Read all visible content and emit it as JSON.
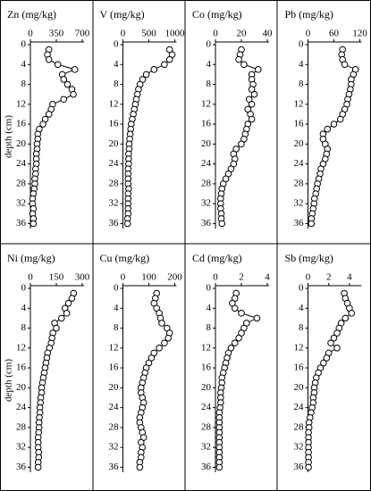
{
  "chart_data": [
    {
      "type": "line",
      "title": "Zn (mg/kg)",
      "ylabel": "depth (cm)",
      "xlim": [
        0,
        700
      ],
      "xticks": [
        0,
        350,
        700
      ],
      "ylim": [
        0,
        37
      ],
      "yticks": [
        0,
        4,
        8,
        12,
        16,
        20,
        24,
        28,
        32,
        36
      ],
      "color": "#000000",
      "x": [
        250,
        230,
        250,
        370,
        600,
        430,
        450,
        500,
        560,
        580,
        450,
        300,
        280,
        250,
        200,
        170,
        120,
        100,
        100,
        90,
        90,
        80,
        80,
        80,
        70,
        70,
        60,
        60,
        50,
        40,
        30,
        30,
        40,
        30,
        40,
        40
      ],
      "y": [
        1,
        2,
        3,
        4,
        5,
        6,
        7,
        8,
        9,
        10,
        11,
        12,
        13,
        14,
        15,
        16,
        17,
        18,
        19,
        20,
        21,
        22,
        23,
        24,
        25,
        26,
        27,
        28,
        29,
        30,
        31,
        32,
        33,
        34,
        35,
        36
      ]
    },
    {
      "type": "line",
      "title": "V (mg/kg)",
      "xlim": [
        0,
        1000
      ],
      "xticks": [
        0,
        500,
        1000
      ],
      "ylim": [
        0,
        37
      ],
      "yticks": [
        0,
        4,
        8,
        12,
        16,
        20,
        24,
        28,
        32,
        36
      ],
      "color": "#000000",
      "x": [
        900,
        950,
        900,
        800,
        600,
        450,
        380,
        330,
        300,
        280,
        260,
        240,
        220,
        200,
        180,
        160,
        150,
        140,
        130,
        120,
        120,
        110,
        110,
        110,
        100,
        100,
        100,
        100,
        110,
        100,
        100,
        100,
        100,
        100,
        90,
        90
      ],
      "y": [
        1,
        2,
        3,
        4,
        5,
        6,
        7,
        8,
        9,
        10,
        11,
        12,
        13,
        14,
        15,
        16,
        17,
        18,
        19,
        20,
        21,
        22,
        23,
        24,
        25,
        26,
        27,
        28,
        29,
        30,
        31,
        32,
        33,
        34,
        35,
        36
      ]
    },
    {
      "type": "line",
      "title": "Co (mg/kg)",
      "xlim": [
        0,
        40
      ],
      "xticks": [
        0,
        20,
        40
      ],
      "ylim": [
        0,
        37
      ],
      "yticks": [
        0,
        4,
        8,
        12,
        16,
        20,
        24,
        28,
        32,
        36
      ],
      "color": "#000000",
      "x": [
        20,
        19,
        18,
        22,
        33,
        28,
        28,
        29,
        28,
        30,
        26,
        28,
        25,
        27,
        28,
        25,
        24,
        23,
        22,
        20,
        16,
        14,
        15,
        14,
        12,
        10,
        8,
        6,
        5,
        4.5,
        4,
        4,
        4,
        4.5,
        4.5,
        5
      ],
      "y": [
        1,
        2,
        3,
        4,
        5,
        6,
        7,
        8,
        9,
        10,
        11,
        12,
        13,
        14,
        15,
        16,
        17,
        18,
        19,
        20,
        21,
        22,
        23,
        24,
        25,
        26,
        27,
        28,
        29,
        30,
        31,
        32,
        33,
        34,
        35,
        36
      ]
    },
    {
      "type": "line",
      "title": "Pb (mg/kg)",
      "xlim": [
        0,
        120
      ],
      "xticks": [
        0,
        60,
        120
      ],
      "ylim": [
        0,
        37
      ],
      "yticks": [
        0,
        4,
        8,
        12,
        16,
        20,
        24,
        28,
        32,
        36
      ],
      "color": "#000000",
      "x": [
        80,
        78,
        80,
        85,
        110,
        105,
        100,
        100,
        98,
        95,
        92,
        90,
        85,
        80,
        75,
        60,
        45,
        35,
        35,
        40,
        45,
        43,
        40,
        35,
        30,
        28,
        25,
        22,
        20,
        18,
        15,
        14,
        12,
        10,
        8,
        8
      ],
      "y": [
        1,
        2,
        3,
        4,
        5,
        6,
        7,
        8,
        9,
        10,
        11,
        12,
        13,
        14,
        15,
        16,
        17,
        18,
        19,
        20,
        21,
        22,
        23,
        24,
        25,
        26,
        27,
        28,
        29,
        30,
        31,
        32,
        33,
        34,
        35,
        36
      ]
    },
    {
      "type": "line",
      "title": "Ni (mg/kg)",
      "ylabel": "depth (cm)",
      "xlim": [
        0,
        300
      ],
      "xticks": [
        0,
        150,
        300
      ],
      "ylim": [
        0,
        37
      ],
      "yticks": [
        0,
        4,
        8,
        12,
        16,
        20,
        24,
        28,
        32,
        36
      ],
      "color": "#000000",
      "x": [
        250,
        240,
        220,
        200,
        210,
        180,
        140,
        150,
        130,
        125,
        120,
        110,
        100,
        95,
        90,
        85,
        80,
        75,
        70,
        65,
        65,
        60,
        58,
        55,
        55,
        52,
        50,
        50,
        48,
        45,
        45,
        45,
        48,
        48,
        45,
        45
      ],
      "y": [
        1,
        2,
        3,
        4,
        5,
        6,
        7,
        8,
        9,
        10,
        11,
        12,
        13,
        14,
        15,
        16,
        17,
        18,
        19,
        20,
        21,
        22,
        23,
        24,
        25,
        26,
        27,
        28,
        29,
        30,
        31,
        32,
        33,
        34,
        35,
        36
      ]
    },
    {
      "type": "line",
      "title": "Cu (mg/kg)",
      "xlim": [
        0,
        200
      ],
      "xticks": [
        0,
        100,
        200
      ],
      "ylim": [
        0,
        37
      ],
      "yticks": [
        0,
        4,
        8,
        12,
        16,
        20,
        24,
        28,
        32,
        36
      ],
      "color": "#000000",
      "x": [
        130,
        125,
        120,
        130,
        140,
        145,
        150,
        170,
        180,
        175,
        160,
        140,
        120,
        110,
        100,
        90,
        85,
        80,
        75,
        70,
        70,
        75,
        80,
        75,
        70,
        65,
        65,
        70,
        75,
        80,
        70,
        75,
        70,
        70,
        65,
        65
      ],
      "y": [
        1,
        2,
        3,
        4,
        5,
        6,
        7,
        8,
        9,
        10,
        11,
        12,
        13,
        14,
        15,
        16,
        17,
        18,
        19,
        20,
        21,
        22,
        23,
        24,
        25,
        26,
        27,
        28,
        29,
        30,
        31,
        32,
        33,
        34,
        35,
        36
      ]
    },
    {
      "type": "line",
      "title": "Cd (mg/kg)",
      "xlim": [
        0,
        4
      ],
      "xticks": [
        0,
        2,
        4
      ],
      "ylim": [
        0,
        37
      ],
      "yticks": [
        0,
        4,
        8,
        12,
        16,
        20,
        24,
        28,
        32,
        36
      ],
      "color": "#000000",
      "x": [
        1.6,
        1.5,
        1.3,
        1.5,
        2.0,
        3.2,
        2.4,
        2.2,
        2.0,
        1.8,
        1.5,
        1.2,
        1.0,
        0.9,
        0.8,
        0.7,
        0.6,
        0.5,
        0.5,
        0.45,
        0.4,
        0.4,
        0.4,
        0.35,
        0.3,
        0.3,
        0.3,
        0.3,
        0.3,
        0.3,
        0.3,
        0.3,
        0.3,
        0.3,
        0.3,
        0.3
      ],
      "y": [
        1,
        2,
        3,
        4,
        5,
        6,
        7,
        8,
        9,
        10,
        11,
        12,
        13,
        14,
        15,
        16,
        17,
        18,
        19,
        20,
        21,
        22,
        23,
        24,
        25,
        26,
        27,
        28,
        29,
        30,
        31,
        32,
        33,
        34,
        35,
        36
      ]
    },
    {
      "type": "line",
      "title": "Sb (mg/kg)",
      "xlim": [
        0,
        5
      ],
      "xticks": [
        0,
        2,
        4
      ],
      "ylim": [
        0,
        37
      ],
      "yticks": [
        0,
        4,
        8,
        12,
        16,
        20,
        24,
        28,
        32,
        36
      ],
      "color": "#000000",
      "x": [
        3.5,
        3.6,
        3.8,
        4.0,
        4.2,
        3.6,
        3.2,
        3.0,
        2.8,
        2.5,
        2.2,
        2.8,
        2.0,
        1.8,
        1.5,
        1.2,
        1.0,
        0.8,
        0.7,
        0.6,
        0.6,
        0.5,
        0.5,
        0.4,
        0.3,
        0.2,
        0.1,
        0.1,
        0.05,
        0.05,
        0.05,
        0.05,
        0.05,
        0.05,
        0.05,
        0.05
      ],
      "y": [
        1,
        2,
        3,
        4,
        5,
        6,
        7,
        8,
        9,
        10,
        11,
        12,
        13,
        14,
        15,
        16,
        17,
        18,
        19,
        20,
        21,
        22,
        23,
        24,
        25,
        26,
        27,
        28,
        29,
        30,
        31,
        32,
        33,
        34,
        35,
        36
      ]
    }
  ]
}
